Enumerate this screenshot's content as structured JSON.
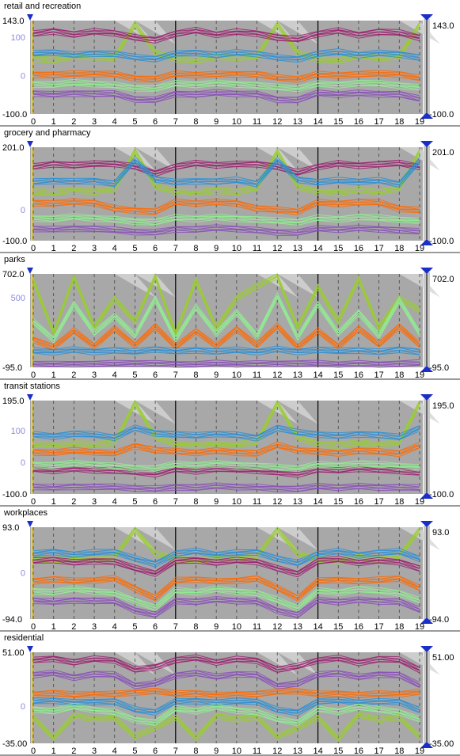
{
  "chart_data": [
    {
      "type": "line",
      "title": "retail and recreation",
      "categories": [
        "0",
        "1",
        "2",
        "3",
        "4",
        "5",
        "6",
        "7",
        "8",
        "9",
        "10",
        "11",
        "12",
        "13",
        "14",
        "15",
        "16",
        "17",
        "18",
        "19"
      ],
      "ylim": [
        -100.0,
        143.0
      ],
      "y_axis_labels": [
        "143.0",
        "100",
        "0",
        "-100.0"
      ],
      "y_axis_values": [
        143.0,
        100,
        0,
        -100.0
      ],
      "right_range_labels": [
        "143.0",
        "-100.0"
      ],
      "series": [
        {
          "color": "#ff6a00",
          "values": [
            5,
            3,
            5,
            6,
            5,
            -5,
            -8,
            5,
            3,
            5,
            6,
            5,
            -5,
            -8,
            5,
            3,
            5,
            6,
            5,
            -5
          ]
        },
        {
          "color": "#8a4fb8",
          "values": [
            -45,
            -48,
            -44,
            -46,
            -47,
            -60,
            -62,
            -45,
            -48,
            -44,
            -46,
            -47,
            -60,
            -62,
            -45,
            -48,
            -44,
            -46,
            -47,
            -60
          ]
        },
        {
          "color": "#9acd32",
          "values": [
            45,
            40,
            52,
            48,
            50,
            135,
            60,
            45,
            40,
            52,
            48,
            50,
            135,
            60,
            45,
            40,
            52,
            48,
            50,
            135
          ]
        },
        {
          "color": "#9b1f6e",
          "values": [
            110,
            118,
            108,
            115,
            112,
            100,
            95,
            110,
            118,
            108,
            115,
            112,
            100,
            95,
            110,
            118,
            108,
            115,
            112,
            100
          ]
        },
        {
          "color": "#2a8fd6",
          "values": [
            58,
            62,
            55,
            60,
            58,
            48,
            45,
            58,
            62,
            55,
            60,
            58,
            48,
            45,
            58,
            62,
            55,
            60,
            58,
            48
          ]
        },
        {
          "color": "#90ee90",
          "values": [
            -20,
            -22,
            -18,
            -20,
            -24,
            -30,
            -32,
            -20,
            -22,
            -18,
            -20,
            -24,
            -30,
            -32,
            -20,
            -22,
            -18,
            -20,
            -24,
            -30
          ]
        }
      ]
    },
    {
      "type": "line",
      "title": "grocery and pharmacy",
      "categories": [
        "0",
        "1",
        "2",
        "3",
        "4",
        "5",
        "6",
        "7",
        "8",
        "9",
        "10",
        "11",
        "12",
        "13",
        "14",
        "15",
        "16",
        "17",
        "18",
        "19"
      ],
      "ylim": [
        -100.0,
        201.0
      ],
      "y_axis_labels": [
        "201.0",
        "0",
        "-100.0"
      ],
      "y_axis_values": [
        201.0,
        0,
        -100.0
      ],
      "right_range_labels": [
        "201.0",
        "-100.0"
      ],
      "series": [
        {
          "color": "#ff6a00",
          "values": [
            25,
            22,
            26,
            24,
            5,
            0,
            -5,
            25,
            22,
            26,
            24,
            5,
            0,
            -5,
            25,
            22,
            26,
            24,
            5,
            0
          ]
        },
        {
          "color": "#8a4fb8",
          "values": [
            -60,
            -62,
            -58,
            -60,
            -65,
            -70,
            -72,
            -60,
            -62,
            -58,
            -60,
            -65,
            -70,
            -72,
            -60,
            -62,
            -58,
            -60,
            -65,
            -70
          ]
        },
        {
          "color": "#9acd32",
          "values": [
            60,
            55,
            65,
            58,
            70,
            190,
            75,
            60,
            55,
            65,
            58,
            70,
            190,
            75,
            60,
            55,
            65,
            58,
            70,
            190
          ]
        },
        {
          "color": "#9b1f6e",
          "values": [
            140,
            150,
            145,
            148,
            150,
            140,
            120,
            140,
            150,
            145,
            148,
            150,
            140,
            120,
            140,
            150,
            145,
            148,
            150,
            140
          ]
        },
        {
          "color": "#2a8fd6",
          "values": [
            90,
            95,
            92,
            96,
            85,
            160,
            100,
            90,
            95,
            92,
            96,
            85,
            160,
            100,
            90,
            95,
            92,
            96,
            85,
            160
          ]
        },
        {
          "color": "#90ee90",
          "values": [
            -25,
            -28,
            -22,
            -26,
            -30,
            -35,
            -38,
            -25,
            -28,
            -22,
            -26,
            -30,
            -35,
            -38,
            -25,
            -28,
            -22,
            -26,
            -30,
            -35
          ]
        }
      ]
    },
    {
      "type": "line",
      "title": "parks",
      "categories": [
        "0",
        "1",
        "2",
        "3",
        "4",
        "5",
        "6",
        "7",
        "8",
        "9",
        "10",
        "11",
        "12",
        "13",
        "14",
        "15",
        "16",
        "17",
        "18",
        "19"
      ],
      "ylim": [
        -95.0,
        702.0
      ],
      "y_axis_labels": [
        "702.0",
        "500",
        "-95.0"
      ],
      "y_axis_values": [
        702.0,
        500,
        -95.0
      ],
      "right_range_labels": [
        "702.0",
        "-95.0"
      ],
      "series": [
        {
          "color": "#ff6a00",
          "values": [
            150,
            80,
            220,
            90,
            240,
            100,
            260,
            80,
            220,
            90,
            240,
            100,
            260,
            80,
            220,
            90,
            240,
            100,
            260,
            100
          ]
        },
        {
          "color": "#8a4fb8",
          "values": [
            -60,
            -65,
            -58,
            -62,
            -60,
            -55,
            -58,
            -60,
            -65,
            -58,
            -62,
            -60,
            -55,
            -58,
            -60,
            -65,
            -58,
            -62,
            -60,
            -55
          ]
        },
        {
          "color": "#9acd32",
          "values": [
            650,
            200,
            680,
            250,
            500,
            300,
            680,
            200,
            650,
            250,
            500,
            600,
            690,
            250,
            600,
            300,
            660,
            250,
            500,
            400
          ]
        },
        {
          "color": "#90ee90",
          "values": [
            300,
            150,
            450,
            200,
            350,
            180,
            500,
            150,
            420,
            200,
            380,
            180,
            520,
            160,
            450,
            200,
            380,
            180,
            480,
            200
          ]
        },
        {
          "color": "#2a8fd6",
          "values": [
            50,
            40,
            60,
            45,
            55,
            40,
            65,
            45,
            60,
            45,
            55,
            40,
            65,
            45,
            60,
            45,
            55,
            40,
            65,
            40
          ]
        }
      ]
    },
    {
      "type": "line",
      "title": "transit stations",
      "categories": [
        "0",
        "1",
        "2",
        "3",
        "4",
        "5",
        "6",
        "7",
        "8",
        "9",
        "10",
        "11",
        "12",
        "13",
        "14",
        "15",
        "16",
        "17",
        "18",
        "19"
      ],
      "ylim": [
        -100.0,
        195.0
      ],
      "y_axis_labels": [
        "195.0",
        "100",
        "0",
        "-100.0"
      ],
      "y_axis_values": [
        195.0,
        100,
        0,
        -100.0
      ],
      "right_range_labels": [
        "195.0",
        "-100.0"
      ],
      "series": [
        {
          "color": "#ff6a00",
          "values": [
            35,
            32,
            38,
            34,
            30,
            55,
            40,
            35,
            32,
            38,
            34,
            30,
            55,
            40,
            35,
            32,
            38,
            34,
            30,
            55
          ]
        },
        {
          "color": "#8a4fb8",
          "values": [
            -75,
            -78,
            -74,
            -76,
            -77,
            -80,
            -82,
            -75,
            -78,
            -74,
            -76,
            -77,
            -80,
            -82,
            -75,
            -78,
            -74,
            -76,
            -77,
            -80
          ]
        },
        {
          "color": "#9acd32",
          "values": [
            60,
            55,
            62,
            58,
            65,
            190,
            80,
            60,
            55,
            62,
            58,
            65,
            190,
            80,
            60,
            55,
            62,
            58,
            65,
            190
          ]
        },
        {
          "color": "#2a8fd6",
          "values": [
            90,
            85,
            92,
            88,
            80,
            110,
            95,
            90,
            85,
            92,
            88,
            80,
            110,
            95,
            90,
            85,
            92,
            88,
            80,
            110
          ]
        },
        {
          "color": "#9b1f6e",
          "values": [
            -20,
            -25,
            -18,
            -22,
            -24,
            -30,
            -35,
            -20,
            -25,
            -18,
            -22,
            -24,
            -30,
            -35,
            -20,
            -25,
            -18,
            -22,
            -24,
            -30
          ]
        },
        {
          "color": "#90ee90",
          "values": [
            -5,
            -8,
            -2,
            -6,
            -10,
            -15,
            -18,
            -5,
            -8,
            -2,
            -6,
            -10,
            -15,
            -18,
            -5,
            -8,
            -2,
            -6,
            -10,
            -15
          ]
        }
      ]
    },
    {
      "type": "line",
      "title": "workplaces",
      "categories": [
        "0",
        "1",
        "2",
        "3",
        "4",
        "5",
        "6",
        "7",
        "8",
        "9",
        "10",
        "11",
        "12",
        "13",
        "14",
        "15",
        "16",
        "17",
        "18",
        "19"
      ],
      "ylim": [
        -94.0,
        93.0
      ],
      "y_axis_labels": [
        "93.0",
        "0",
        "-94.0"
      ],
      "y_axis_values": [
        93.0,
        0,
        -94.0
      ],
      "right_range_labels": [
        "93.0",
        "-94.0"
      ],
      "series": [
        {
          "color": "#ff6a00",
          "values": [
            -15,
            -12,
            -16,
            -14,
            -10,
            -30,
            -50,
            -15,
            -12,
            -16,
            -14,
            -10,
            -30,
            -50,
            -15,
            -12,
            -16,
            -14,
            -10,
            -30
          ]
        },
        {
          "color": "#8a4fb8",
          "values": [
            -55,
            -58,
            -54,
            -56,
            -57,
            -75,
            -85,
            -55,
            -58,
            -54,
            -56,
            -57,
            -75,
            -85,
            -55,
            -58,
            -54,
            -56,
            -57,
            -75
          ]
        },
        {
          "color": "#9acd32",
          "values": [
            30,
            25,
            32,
            28,
            35,
            90,
            40,
            30,
            25,
            32,
            28,
            35,
            90,
            40,
            30,
            25,
            32,
            28,
            35,
            90
          ]
        },
        {
          "color": "#2a8fd6",
          "values": [
            40,
            45,
            38,
            42,
            44,
            30,
            20,
            40,
            45,
            38,
            42,
            44,
            30,
            20,
            40,
            45,
            38,
            42,
            44,
            30
          ]
        },
        {
          "color": "#9b1f6e",
          "values": [
            25,
            28,
            22,
            26,
            24,
            10,
            0,
            25,
            28,
            22,
            26,
            24,
            10,
            0,
            25,
            28,
            22,
            26,
            24,
            10
          ]
        },
        {
          "color": "#90ee90",
          "values": [
            -35,
            -38,
            -32,
            -36,
            -40,
            -55,
            -70,
            -35,
            -38,
            -32,
            -36,
            -40,
            -55,
            -70,
            -35,
            -38,
            -32,
            -36,
            -40,
            -55
          ]
        }
      ]
    },
    {
      "type": "line",
      "title": "residential",
      "categories": [
        "0",
        "1",
        "2",
        "3",
        "4",
        "5",
        "6",
        "7",
        "8",
        "9",
        "10",
        "11",
        "12",
        "13",
        "14",
        "15",
        "16",
        "17",
        "18",
        "19"
      ],
      "ylim": [
        -35.0,
        51.0
      ],
      "y_axis_labels": [
        "51.00",
        "0",
        "-35.00"
      ],
      "y_axis_values": [
        51.0,
        0,
        -35.0
      ],
      "right_range_labels": [
        "51.00",
        "-35.00"
      ],
      "series": [
        {
          "color": "#ff6a00",
          "values": [
            12,
            13,
            11,
            12,
            12,
            14,
            15,
            12,
            13,
            11,
            12,
            12,
            14,
            15,
            12,
            13,
            11,
            12,
            12,
            14
          ]
        },
        {
          "color": "#8a4fb8",
          "values": [
            30,
            32,
            28,
            31,
            30,
            20,
            22,
            30,
            32,
            28,
            31,
            30,
            20,
            22,
            30,
            32,
            28,
            31,
            30,
            20
          ]
        },
        {
          "color": "#9acd32",
          "values": [
            -10,
            -30,
            -8,
            -12,
            -10,
            -28,
            -20,
            -10,
            -30,
            -8,
            -12,
            -10,
            -28,
            -20,
            -10,
            -30,
            -8,
            -12,
            -10,
            -28
          ]
        },
        {
          "color": "#9b1f6e",
          "values": [
            44,
            46,
            42,
            45,
            44,
            35,
            38,
            44,
            46,
            42,
            45,
            44,
            35,
            38,
            44,
            46,
            42,
            45,
            44,
            35
          ]
        },
        {
          "color": "#2a8fd6",
          "values": [
            5,
            6,
            4,
            5,
            5,
            -3,
            -5,
            5,
            6,
            4,
            5,
            5,
            -3,
            -5,
            5,
            6,
            4,
            5,
            5,
            -3
          ]
        },
        {
          "color": "#90ee90",
          "values": [
            -2,
            -4,
            0,
            -3,
            -5,
            -12,
            -15,
            -2,
            -4,
            0,
            -3,
            -5,
            -12,
            -15,
            -2,
            -4,
            0,
            -3,
            -5,
            -12
          ]
        }
      ]
    }
  ]
}
